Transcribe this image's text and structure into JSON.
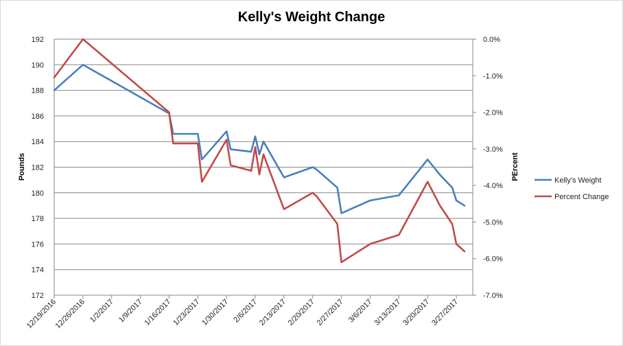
{
  "chart_data": {
    "type": "line",
    "title": "Kelly's Weight Change",
    "ylabel": "Pounds",
    "y2label": "PErcent",
    "ylim": [
      172,
      192
    ],
    "y2lim": [
      -7.0,
      0.0
    ],
    "yticks": [
      "192",
      "190",
      "188",
      "186",
      "184",
      "182",
      "180",
      "178",
      "176",
      "174",
      "172"
    ],
    "y2ticks": [
      "0.0%",
      "-1.0%",
      "-2.0%",
      "-3.0%",
      "-4.0%",
      "-5.0%",
      "-6.0%",
      "-7.0%"
    ],
    "xticks": [
      "12/19/2016",
      "12/26/2016",
      "1/2/2017",
      "1/9/2017",
      "1/16/2017",
      "1/23/2017",
      "1/30/2017",
      "2/6/2017",
      "2/13/2017",
      "2/20/2017",
      "2/27/2017",
      "3/6/2017",
      "3/13/2017",
      "3/20/2017",
      "3/27/2017"
    ],
    "grid": "horizontal",
    "legend": "right",
    "series": [
      {
        "name": "Kelly's Weight",
        "axis": "left",
        "color": "#4a7ebb",
        "x": [
          "2016-12-19",
          "2016-12-26",
          "2017-01-16",
          "2017-01-17",
          "2017-01-23",
          "2017-01-24",
          "2017-01-30",
          "2017-01-31",
          "2017-02-05",
          "2017-02-06",
          "2017-02-07",
          "2017-02-08",
          "2017-02-13",
          "2017-02-20",
          "2017-02-21",
          "2017-02-26",
          "2017-02-27",
          "2017-03-06",
          "2017-03-13",
          "2017-03-20",
          "2017-03-23",
          "2017-03-26",
          "2017-03-27",
          "2017-03-29"
        ],
        "values": [
          188.0,
          190.0,
          186.2,
          184.6,
          184.6,
          182.6,
          184.8,
          183.4,
          183.2,
          184.4,
          183.0,
          184.0,
          181.2,
          182.0,
          181.8,
          180.4,
          178.4,
          179.4,
          179.8,
          182.6,
          181.4,
          180.4,
          179.4,
          179.0
        ]
      },
      {
        "name": "Percent Change",
        "axis": "right",
        "color": "#be4b48",
        "x": [
          "2016-12-19",
          "2016-12-26",
          "2017-01-16",
          "2017-01-17",
          "2017-01-23",
          "2017-01-24",
          "2017-01-30",
          "2017-01-31",
          "2017-02-05",
          "2017-02-06",
          "2017-02-07",
          "2017-02-08",
          "2017-02-13",
          "2017-02-20",
          "2017-02-21",
          "2017-02-26",
          "2017-02-27",
          "2017-03-06",
          "2017-03-13",
          "2017-03-20",
          "2017-03-23",
          "2017-03-26",
          "2017-03-27",
          "2017-03-29"
        ],
        "values": [
          -1.05,
          0.0,
          -2.0,
          -2.85,
          -2.85,
          -3.9,
          -2.75,
          -3.45,
          -3.6,
          -2.95,
          -3.7,
          -3.15,
          -4.65,
          -4.2,
          -4.3,
          -5.05,
          -6.1,
          -5.6,
          -5.35,
          -3.9,
          -4.55,
          -5.05,
          -5.6,
          -5.8
        ]
      }
    ]
  }
}
